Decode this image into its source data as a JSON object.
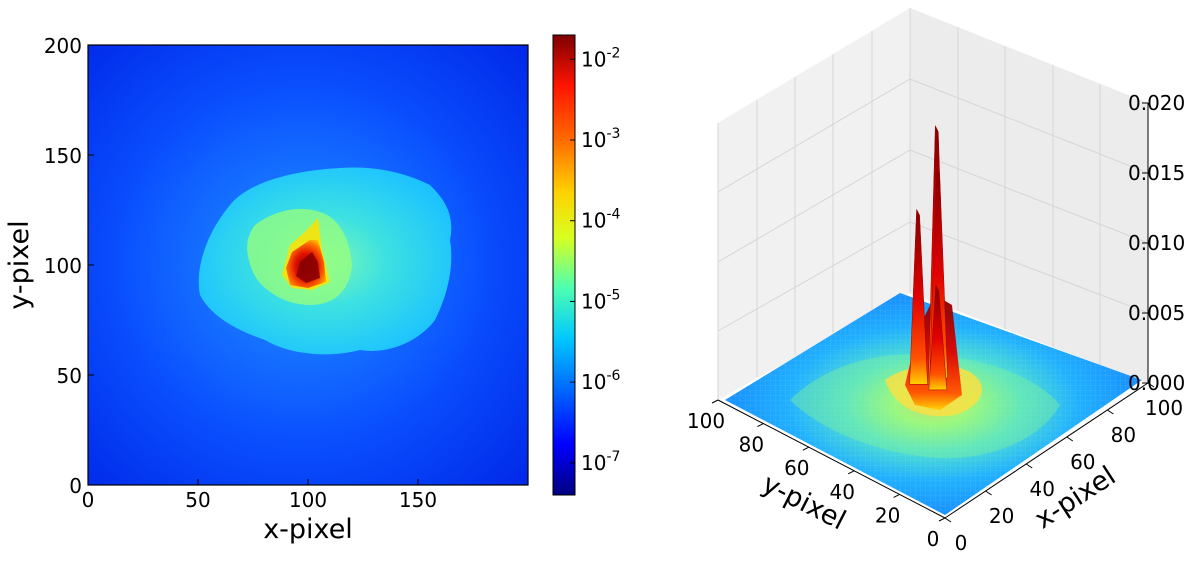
{
  "chart_data": [
    {
      "type": "heatmap",
      "xlabel": "x-pixel",
      "ylabel": "y-pixel",
      "xlim": [
        0,
        200
      ],
      "ylim": [
        0,
        200
      ],
      "xticks": [
        "0",
        "50",
        "100",
        "150"
      ],
      "yticks": [
        "0",
        "50",
        "100",
        "150",
        "200"
      ],
      "colormap": "jet",
      "color_scale": "log",
      "colorbar": {
        "range": [
          4e-08,
          0.02
        ],
        "ticks": [
          {
            "value": 1e-07,
            "base": "10",
            "exp": "-7"
          },
          {
            "value": 1e-06,
            "base": "10",
            "exp": "-6"
          },
          {
            "value": 1e-05,
            "base": "10",
            "exp": "-5"
          },
          {
            "value": 0.0001,
            "base": "10",
            "exp": "-4"
          },
          {
            "value": 0.001,
            "base": "10",
            "exp": "-3"
          },
          {
            "value": 0.01,
            "base": "10",
            "exp": "-2"
          }
        ]
      },
      "features": {
        "center": [
          100,
          100
        ],
        "background_value": 1e-07,
        "halo_value": 1e-05,
        "core_value": 0.01
      }
    },
    {
      "type": "surface",
      "xlabel": "x-pixel",
      "ylabel": "y-pixel",
      "xlim": [
        0,
        100
      ],
      "ylim": [
        0,
        100
      ],
      "zlim": [
        0,
        0.02
      ],
      "xticks": [
        "0",
        "20",
        "40",
        "60",
        "80",
        "100"
      ],
      "yticks": [
        "0",
        "20",
        "40",
        "60",
        "80",
        "100"
      ],
      "zticks": [
        "0.000",
        "0.005",
        "0.010",
        "0.015",
        "0.020"
      ],
      "colormap": "jet",
      "peaks": [
        {
          "x": 52,
          "y": 50,
          "z": 0.0185
        },
        {
          "x": 55,
          "y": 52,
          "z": 0.015
        },
        {
          "x": 48,
          "y": 55,
          "z": 0.0125
        },
        {
          "x": 50,
          "y": 48,
          "z": 0.0075
        }
      ]
    }
  ]
}
